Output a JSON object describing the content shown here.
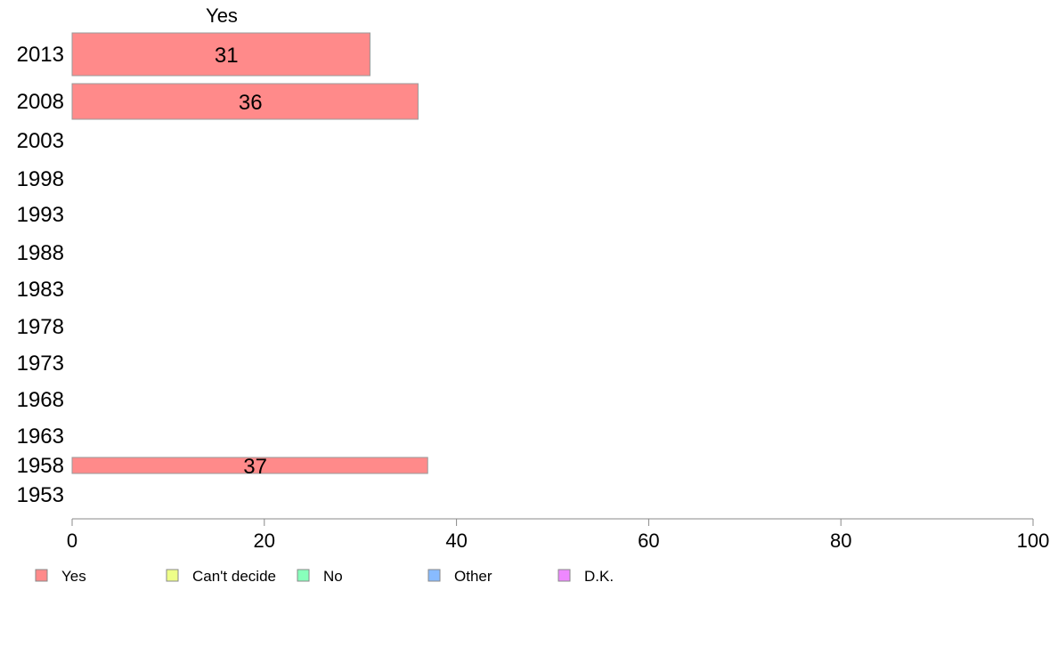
{
  "chart_data": {
    "type": "bar",
    "orientation": "horizontal",
    "column_label": "Yes",
    "categories": [
      "2013",
      "2008",
      "2003",
      "1998",
      "1993",
      "1988",
      "1983",
      "1978",
      "1973",
      "1968",
      "1963",
      "1958",
      "1953"
    ],
    "series": [
      {
        "name": "Yes",
        "color": "#ff8a8a",
        "values": [
          31,
          36,
          null,
          null,
          null,
          null,
          null,
          null,
          null,
          null,
          null,
          37,
          null
        ],
        "labels": [
          "31",
          "36",
          "",
          "",
          "",
          "",
          "",
          "",
          "",
          "",
          "",
          "37",
          ""
        ]
      }
    ],
    "xlim": [
      0,
      100
    ],
    "x_ticks": [
      "0",
      "20",
      "40",
      "60",
      "80",
      "100"
    ],
    "grid": false,
    "legend_position": "bottom",
    "legend": [
      {
        "label": "Yes",
        "color": "#ff8a8a"
      },
      {
        "label": "Can't decide",
        "color": "#eeff88"
      },
      {
        "label": "No",
        "color": "#88ffbb"
      },
      {
        "label": "Other",
        "color": "#88bbff"
      },
      {
        "label": "D.K.",
        "color": "#ee88ff"
      }
    ]
  }
}
